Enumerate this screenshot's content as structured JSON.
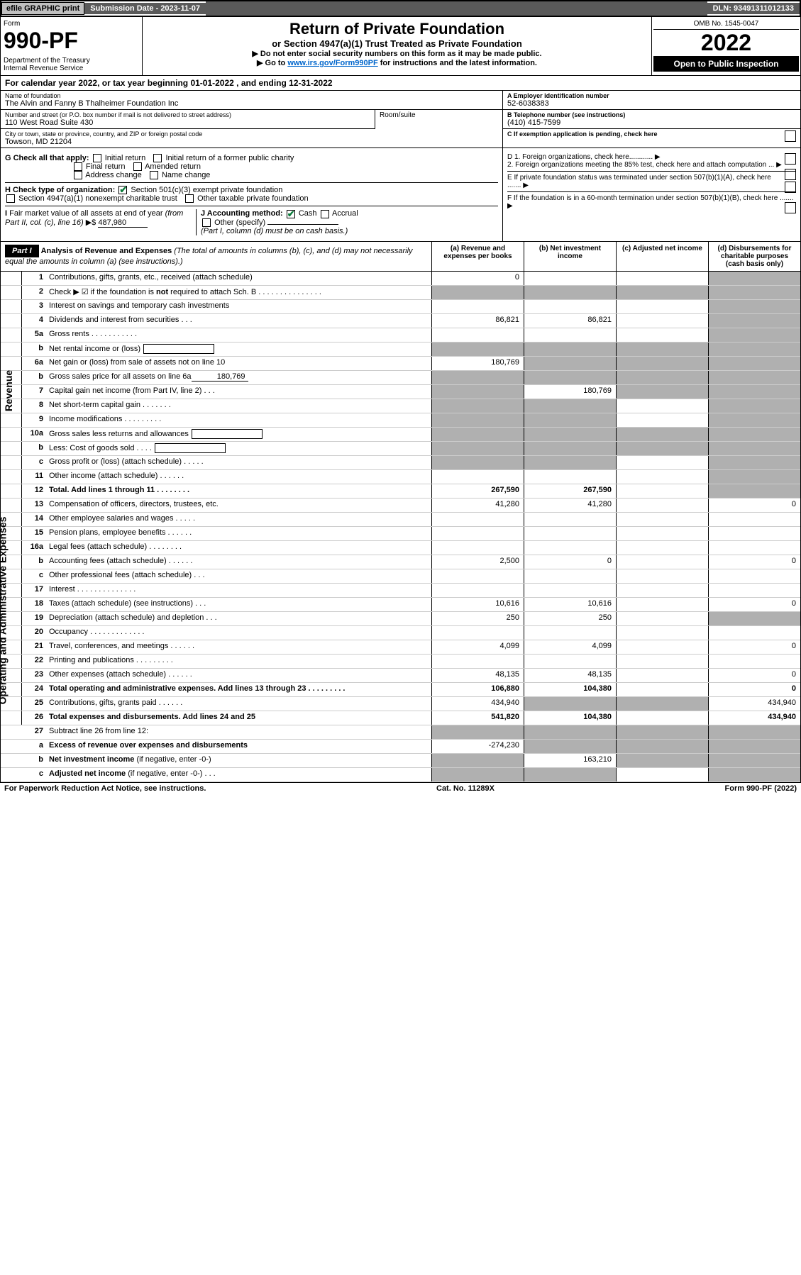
{
  "top": {
    "efile": "efile GRAPHIC print",
    "subdate_label": "Submission Date - 2023-11-07",
    "dln": "DLN: 93491311012133"
  },
  "hdr": {
    "form_word": "Form",
    "form_num": "990-PF",
    "dept": "Department of the Treasury\nInternal Revenue Service",
    "title": "Return of Private Foundation",
    "sub1": "or Section 4947(a)(1) Trust Treated as Private Foundation",
    "sub2a": "▶ Do not enter social security numbers on this form as it may be made public.",
    "sub2b": "▶ Go to ",
    "link": "www.irs.gov/Form990PF",
    "sub2c": " for instructions and the latest information.",
    "omb": "OMB No. 1545-0047",
    "year": "2022",
    "open": "Open to Public Inspection"
  },
  "cal": "For calendar year 2022, or tax year beginning 01-01-2022            , and ending 12-31-2022",
  "info": {
    "name_lbl": "Name of foundation",
    "name": "The Alvin and Fanny B Thalheimer Foundation Inc",
    "addr_lbl": "Number and street (or P.O. box number if mail is not delivered to street address)",
    "addr": "110 West Road Suite 430",
    "room_lbl": "Room/suite",
    "city_lbl": "City or town, state or province, country, and ZIP or foreign postal code",
    "city": "Towson, MD  21204",
    "a_lbl": "A Employer identification number",
    "a_val": "52-6038383",
    "b_lbl": "B Telephone number (see instructions)",
    "b_val": "(410) 415-7599",
    "c_lbl": "C If exemption application is pending, check here"
  },
  "g": {
    "lbl": "G Check all that apply:",
    "o1": "Initial return",
    "o2": "Initial return of a former public charity",
    "o3": "Final return",
    "o4": "Amended return",
    "o5": "Address change",
    "o6": "Name change"
  },
  "h": {
    "lbl": "H Check type of organization:",
    "o1": "Section 501(c)(3) exempt private foundation",
    "o2": "Section 4947(a)(1) nonexempt charitable trust",
    "o3": "Other taxable private foundation"
  },
  "i": {
    "lbl": "I Fair market value of all assets at end of year (from Part II, col. (c), line 16) ▶$",
    "val": "487,980"
  },
  "j": {
    "lbl": "J Accounting method:",
    "o1": "Cash",
    "o2": "Accrual",
    "o3": "Other (specify)",
    "note": "(Part I, column (d) must be on cash basis.)"
  },
  "d": {
    "d1": "D 1. Foreign organizations, check here............",
    "d2": "2. Foreign organizations meeting the 85% test, check here and attach computation ...",
    "e": "E  If private foundation status was terminated under section 507(b)(1)(A), check here .......",
    "f": "F  If the foundation is in a 60-month termination under section 507(b)(1)(B), check here ......."
  },
  "part1": {
    "tag": "Part I",
    "title": "Analysis of Revenue and Expenses",
    "note": "(The total of amounts in columns (b), (c), and (d) may not necessarily equal the amounts in column (a) (see instructions).)",
    "ca": "(a)    Revenue and expenses per books",
    "cb": "(b)   Net investment income",
    "cc": "(c)   Adjusted net income",
    "cd": "(d)   Disbursements for charitable purposes (cash basis only)"
  },
  "side": {
    "rev": "Revenue",
    "exp": "Operating and Administrative Expenses"
  },
  "rows": [
    {
      "n": "1",
      "t": "Contributions, gifts, grants, etc., received (attach schedule)",
      "a": "0",
      "b": "",
      "gc": false,
      "gd": true
    },
    {
      "n": "2",
      "t": "Check ▶ ☑ if the foundation is <b>not</b> required to attach Sch. B   .  .  .  .  .  .  .  .  .  .  .  .  .  .  .",
      "a": "",
      "ga": true,
      "gb": true,
      "gc": true,
      "gd": true,
      "noborder": true
    },
    {
      "n": "3",
      "t": "Interest on savings and temporary cash investments",
      "a": "",
      "b": "",
      "gc": false,
      "gd": true
    },
    {
      "n": "4",
      "t": "Dividends and interest from securities   .   .   .",
      "a": "86,821",
      "b": "86,821",
      "gc": false,
      "gd": true
    },
    {
      "n": "5a",
      "t": "Gross rents   .   .   .   .   .   .   .   .   .   .   .",
      "a": "",
      "b": "",
      "gc": false,
      "gd": true
    },
    {
      "n": "b",
      "t": "Net rental income or (loss)",
      "a": "",
      "ga": true,
      "gb": true,
      "gc": true,
      "gd": true,
      "inset": true
    },
    {
      "n": "6a",
      "t": "Net gain or (loss) from sale of assets not on line 10",
      "a": "180,769",
      "gb": true,
      "gc": true,
      "gd": true
    },
    {
      "n": "b",
      "t": "Gross sales price for all assets on line 6a",
      "a": "",
      "ga": true,
      "gb": true,
      "gc": true,
      "gd": true,
      "inline_val": "180,769"
    },
    {
      "n": "7",
      "t": "Capital gain net income (from Part IV, line 2)   .   .   .",
      "a": "",
      "b": "180,769",
      "ga": true,
      "gc": true,
      "gd": true
    },
    {
      "n": "8",
      "t": "Net short-term capital gain   .   .   .   .   .   .   .",
      "a": "",
      "ga": true,
      "gb": true,
      "gd": true
    },
    {
      "n": "9",
      "t": "Income modifications  .   .   .   .   .   .   .   .   .",
      "a": "",
      "ga": true,
      "gb": true,
      "gd": true
    },
    {
      "n": "10a",
      "t": "Gross sales less returns and allowances",
      "a": "",
      "ga": true,
      "gb": true,
      "gc": true,
      "gd": true,
      "inset": true
    },
    {
      "n": "b",
      "t": "Less: Cost of goods sold   .   .   .   .",
      "a": "",
      "ga": true,
      "gb": true,
      "gc": true,
      "gd": true,
      "inset": true
    },
    {
      "n": "c",
      "t": "Gross profit or (loss) (attach schedule)   .   .   .   .   .",
      "a": "",
      "ga": true,
      "gb": true,
      "gd": true
    },
    {
      "n": "11",
      "t": "Other income (attach schedule)   .   .   .   .   .   .",
      "a": "",
      "b": "",
      "gc": false,
      "gd": true
    },
    {
      "n": "12",
      "t": "<b>Total.</b> Add lines 1 through 11   .   .   .   .   .   .   .   .",
      "a": "267,590",
      "b": "267,590",
      "gc": false,
      "gd": true,
      "bold": true
    },
    {
      "n": "13",
      "t": "Compensation of officers, directors, trustees, etc.",
      "a": "41,280",
      "b": "41,280",
      "d": "0",
      "sec": "exp"
    },
    {
      "n": "14",
      "t": "Other employee salaries and wages   .   .   .   .   .",
      "a": "",
      "b": "",
      "d": ""
    },
    {
      "n": "15",
      "t": "Pension plans, employee benefits  .   .   .   .   .   .",
      "a": "",
      "b": "",
      "d": ""
    },
    {
      "n": "16a",
      "t": "Legal fees (attach schedule)  .   .   .   .   .   .   .   .",
      "a": "",
      "b": "",
      "d": ""
    },
    {
      "n": "b",
      "t": "Accounting fees (attach schedule)  .   .   .   .   .   .",
      "a": "2,500",
      "b": "0",
      "d": "0"
    },
    {
      "n": "c",
      "t": "Other professional fees (attach schedule)   .   .   .",
      "a": "",
      "b": "",
      "d": ""
    },
    {
      "n": "17",
      "t": "Interest  .   .   .   .   .   .   .   .   .   .   .   .   .   .",
      "a": "",
      "b": "",
      "d": ""
    },
    {
      "n": "18",
      "t": "Taxes (attach schedule) (see instructions)   .   .   .",
      "a": "10,616",
      "b": "10,616",
      "d": "0"
    },
    {
      "n": "19",
      "t": "Depreciation (attach schedule) and depletion   .   .   .",
      "a": "250",
      "b": "250",
      "gd": true
    },
    {
      "n": "20",
      "t": "Occupancy  .   .   .   .   .   .   .   .   .   .   .   .   .",
      "a": "",
      "b": "",
      "d": ""
    },
    {
      "n": "21",
      "t": "Travel, conferences, and meetings  .   .   .   .   .   .",
      "a": "4,099",
      "b": "4,099",
      "d": "0"
    },
    {
      "n": "22",
      "t": "Printing and publications  .   .   .   .   .   .   .   .   .",
      "a": "",
      "b": "",
      "d": ""
    },
    {
      "n": "23",
      "t": "Other expenses (attach schedule)  .   .   .   .   .   .",
      "a": "48,135",
      "b": "48,135",
      "d": "0"
    },
    {
      "n": "24",
      "t": "<b>Total operating and administrative expenses.</b> Add lines 13 through 23   .   .   .   .   .   .   .   .   .",
      "a": "106,880",
      "b": "104,380",
      "d": "0",
      "bold": true
    },
    {
      "n": "25",
      "t": "Contributions, gifts, grants paid   .   .   .   .   .   .",
      "a": "434,940",
      "gb": true,
      "gc": true,
      "d": "434,940"
    },
    {
      "n": "26",
      "t": "<b>Total expenses and disbursements.</b> Add lines 24 and 25",
      "a": "541,820",
      "b": "104,380",
      "d": "434,940",
      "bold": true
    },
    {
      "n": "27",
      "t": "Subtract line 26 from line 12:",
      "ga": true,
      "gb": true,
      "gc": true,
      "gd": true,
      "noside": true
    },
    {
      "n": "a",
      "t": "<b>Excess of revenue over expenses and disbursements</b>",
      "a": "-274,230",
      "gb": true,
      "gc": true,
      "gd": true,
      "noside": true
    },
    {
      "n": "b",
      "t": "<b>Net investment income</b> (if negative, enter -0-)",
      "a": "",
      "b": "163,210",
      "ga": true,
      "gc": true,
      "gd": true,
      "noside": true
    },
    {
      "n": "c",
      "t": "<b>Adjusted net income</b> (if negative, enter -0-)   .   .   .",
      "a": "",
      "ga": true,
      "gb": true,
      "gd": true,
      "noside": true
    }
  ],
  "foot": {
    "l": "For Paperwork Reduction Act Notice, see instructions.",
    "m": "Cat. No. 11289X",
    "r": "Form 990-PF (2022)"
  }
}
